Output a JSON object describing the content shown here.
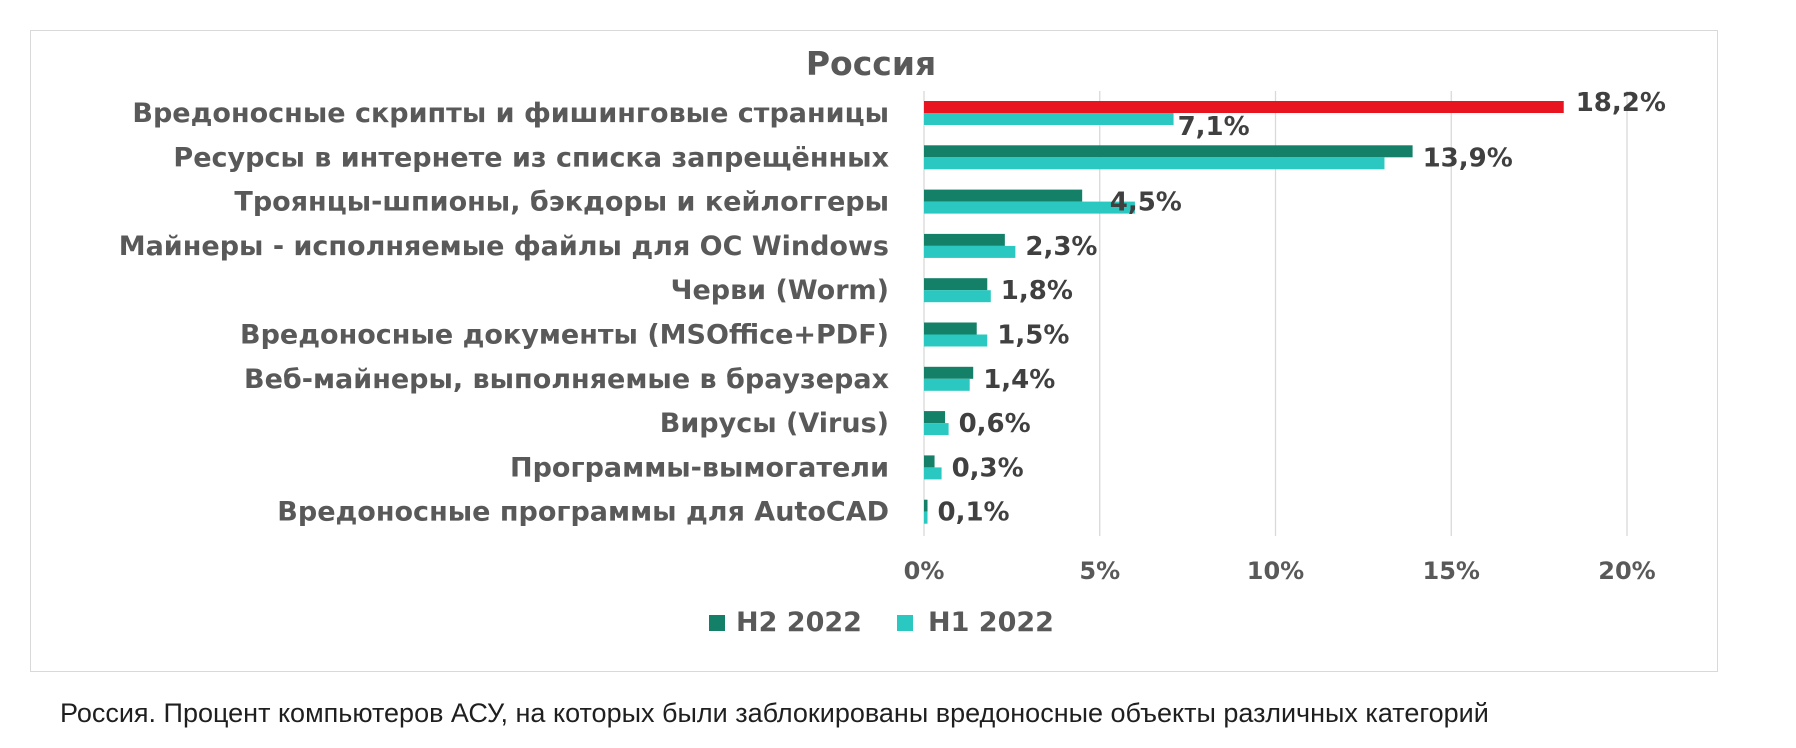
{
  "chart_data": {
    "type": "bar",
    "orientation": "horizontal",
    "title": "Россия",
    "categories": [
      "Вредоносные скрипты и фишинговые страницы",
      "Ресурсы в интернете из списка запрещённых",
      "Троянцы-шпионы, бэкдоры и кейлоггеры",
      "Майнеры - исполняемые файлы для ОС Windows",
      "Черви (Worm)",
      "Вредоносные документы (MSOffice+PDF)",
      "Веб-майнеры, выполняемые в браузерах",
      "Вирусы (Virus)",
      "Программы-вымогатели",
      "Вредоносные программы для AutoCAD"
    ],
    "series": [
      {
        "name": "H2 2022",
        "color": "#138067",
        "values": [
          18.2,
          13.9,
          4.5,
          2.3,
          1.8,
          1.5,
          1.4,
          0.6,
          0.3,
          0.1
        ],
        "highlight": [
          0
        ],
        "highlight_color": "#e8141f"
      },
      {
        "name": "H1 2022",
        "color": "#2ac8c0",
        "values": [
          7.1,
          13.1,
          6.0,
          2.6,
          1.9,
          1.8,
          1.3,
          0.7,
          0.5,
          0.1
        ]
      }
    ],
    "data_labels": [
      "18,2%",
      "7,1%",
      "13,9%",
      "4,5%",
      "2,3%",
      "1,8%",
      "1,5%",
      "1,4%",
      "0,6%",
      "0,3%",
      "0,1%"
    ],
    "xlim": [
      0,
      20
    ],
    "xticks": [
      0,
      5,
      10,
      15,
      20
    ],
    "xtick_labels": [
      "0%",
      "5%",
      "10%",
      "15%",
      "20%"
    ],
    "grid": true,
    "legend_position": "bottom"
  },
  "caption": "Россия. Процент компьютеров АСУ, на которых были заблокированы вредоносные объекты различных категорий"
}
